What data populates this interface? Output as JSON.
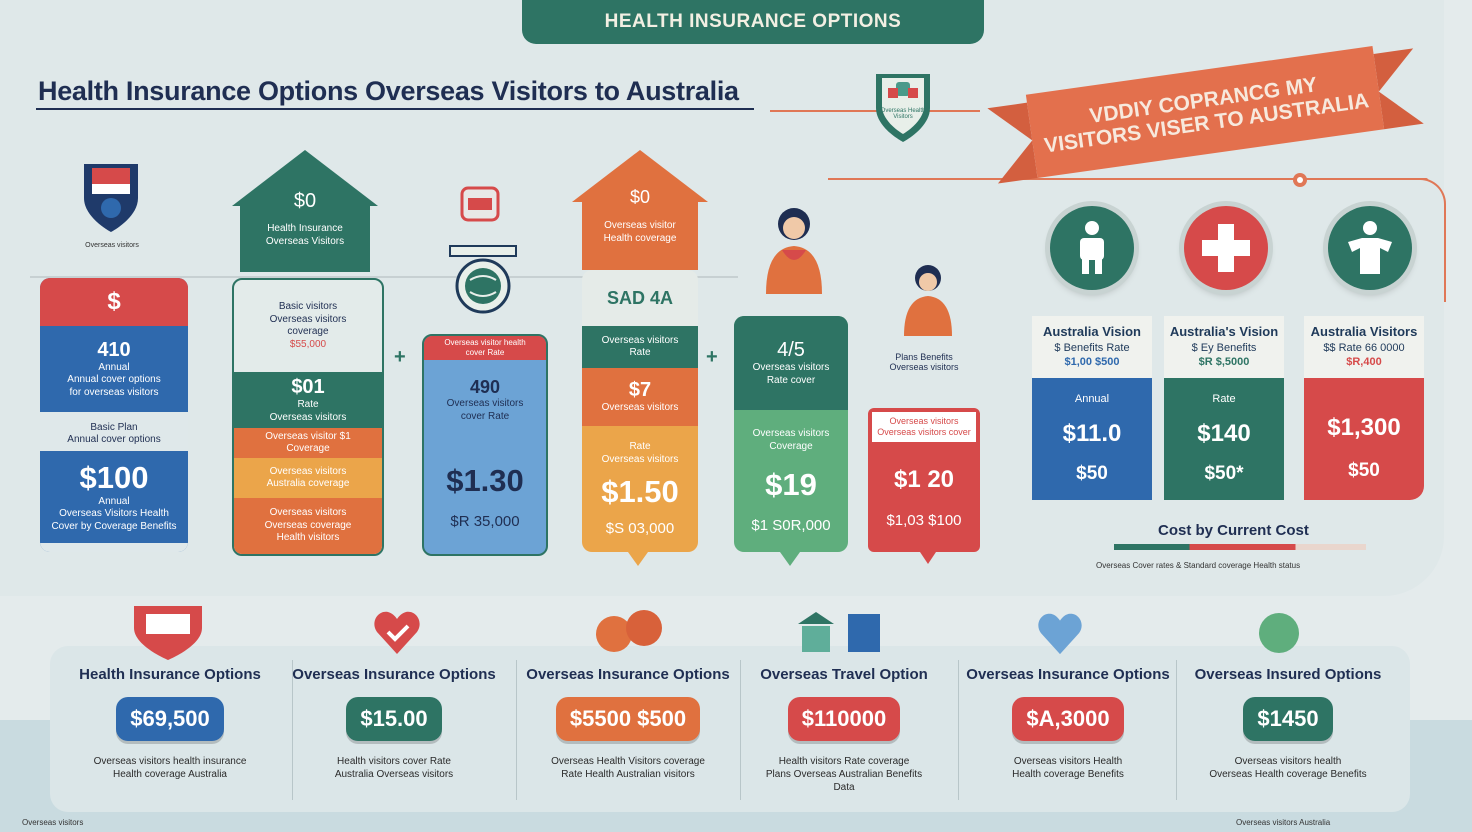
{
  "top_banner": "HEALTH INSURANCE OPTIONS",
  "main_title": "Health Insurance Options Overseas Visitors to Australia",
  "ribbon": {
    "line1": "VDDIY COPRANCG MY",
    "line2": "VISITORS VISER TO AUSTRALIA"
  },
  "shield_badge_text": "Overseas Health Visitors",
  "small_shield_caption": "Overseas visitors",
  "cards": [
    {
      "head": "$",
      "price_a": "410",
      "sub_a": "Annual",
      "text_a": "Annual cover options\nfor overseas visitors",
      "label_b": "Basic Plan",
      "text_b": "Annual cover options",
      "price_big": "$100",
      "sub_big": "Annual",
      "foot": "Overseas Visitors Health\nCover by Coverage Benefits"
    },
    {
      "roof_price": "$0",
      "roof_text": "Health Insurance\nOverseas Visitors",
      "top_text": "Basic visitors\nOverseas visitors\ncoverage",
      "top_price": "$55,000",
      "price_b": "$01",
      "sub_b": "Rate",
      "text_b": "Overseas visitors",
      "text_c": "Overseas visitor $1\nCoverage",
      "text_d": "Overseas visitors\nAustralia coverage",
      "text_e": "Overseas visitors\nOverseas coverage\nHealth visitors"
    },
    {
      "cap_text": "Overseas visitor health\ncover Rate",
      "price_a": "490",
      "text_a": "Overseas visitors\ncover Rate",
      "price_big": "$1.30",
      "foot": "$R 35,000"
    },
    {
      "roof_price": "$0",
      "roof_text": "Overseas visitor\nHealth coverage",
      "price_a": "SAD 4A",
      "text_a": "Overseas visitors\nRate",
      "price_b": "$7",
      "text_b": "Overseas visitors",
      "label_c": "Rate",
      "text_c": "Overseas visitors",
      "price_big": "$1.50",
      "foot": "$S 03,000"
    },
    {
      "price_a": "4/5",
      "text_a": "Overseas visitors\nRate cover",
      "text_b": "Overseas visitors\nCoverage",
      "price_big": "$19",
      "foot": "$1 S0R,000"
    },
    {
      "cap": "Plans Benefits\nOverseas visitors",
      "text_a": "Overseas visitors\nOverseas visitors cover",
      "price_big": "$1 20",
      "foot": "$1,03 $100"
    }
  ],
  "cost_cards": [
    {
      "title": "Australia Vision",
      "line1": "$ Benefits Rate",
      "line2": "$1,00 $500",
      "label": "Annual",
      "p1": "$11.0",
      "p2": "$50",
      "color": "#2f69ad"
    },
    {
      "title": "Australia's Vision",
      "line1": "$ Ey Benefits",
      "line2": "$R $,5000",
      "label": "Rate",
      "p1": "$140",
      "p2": "$50*",
      "color": "#2e7464"
    },
    {
      "title": "Australia Visitors",
      "line1": "$$ Rate 66 0000",
      "line2": "$R,400",
      "label": "",
      "p1": "$1,300",
      "p2": "$50",
      "color": "#d64a4a"
    }
  ],
  "cost_legend": "Cost by Current Cost",
  "cost_note": "Overseas Cover rates & Standard coverage Health status",
  "bottom_options": [
    {
      "title": "Health Insurance Options",
      "price": "$69,500",
      "color": "#2f69ad",
      "desc": "Overseas visitors health insurance\nHealth coverage Australia"
    },
    {
      "title": "Overseas Insurance Options",
      "price": "$15.00",
      "color": "#2e7464",
      "desc": "Health visitors cover Rate\nAustralia Overseas visitors"
    },
    {
      "title": "Overseas Insurance Options",
      "price": "$5500 $500",
      "color": "#e0713f",
      "desc": "Overseas Health Visitors coverage\nRate Health Australian visitors"
    },
    {
      "title": "Overseas Travel Option",
      "price": "$110000",
      "color": "#d64a4a",
      "desc": "Health visitors Rate coverage\nPlans Overseas Australian Benefits\nData"
    },
    {
      "title": "Overseas Insurance Options",
      "price": "$A,3000",
      "color": "#d64a4a",
      "desc": "Overseas visitors Health\nHealth coverage Benefits"
    },
    {
      "title": "Overseas Insured Options",
      "price": "$1450",
      "color": "#2e7464",
      "desc": "Overseas visitors health\nOverseas Health coverage Benefits"
    }
  ],
  "footer_left": "Overseas visitors",
  "footer_right": "Overseas visitors Australia"
}
